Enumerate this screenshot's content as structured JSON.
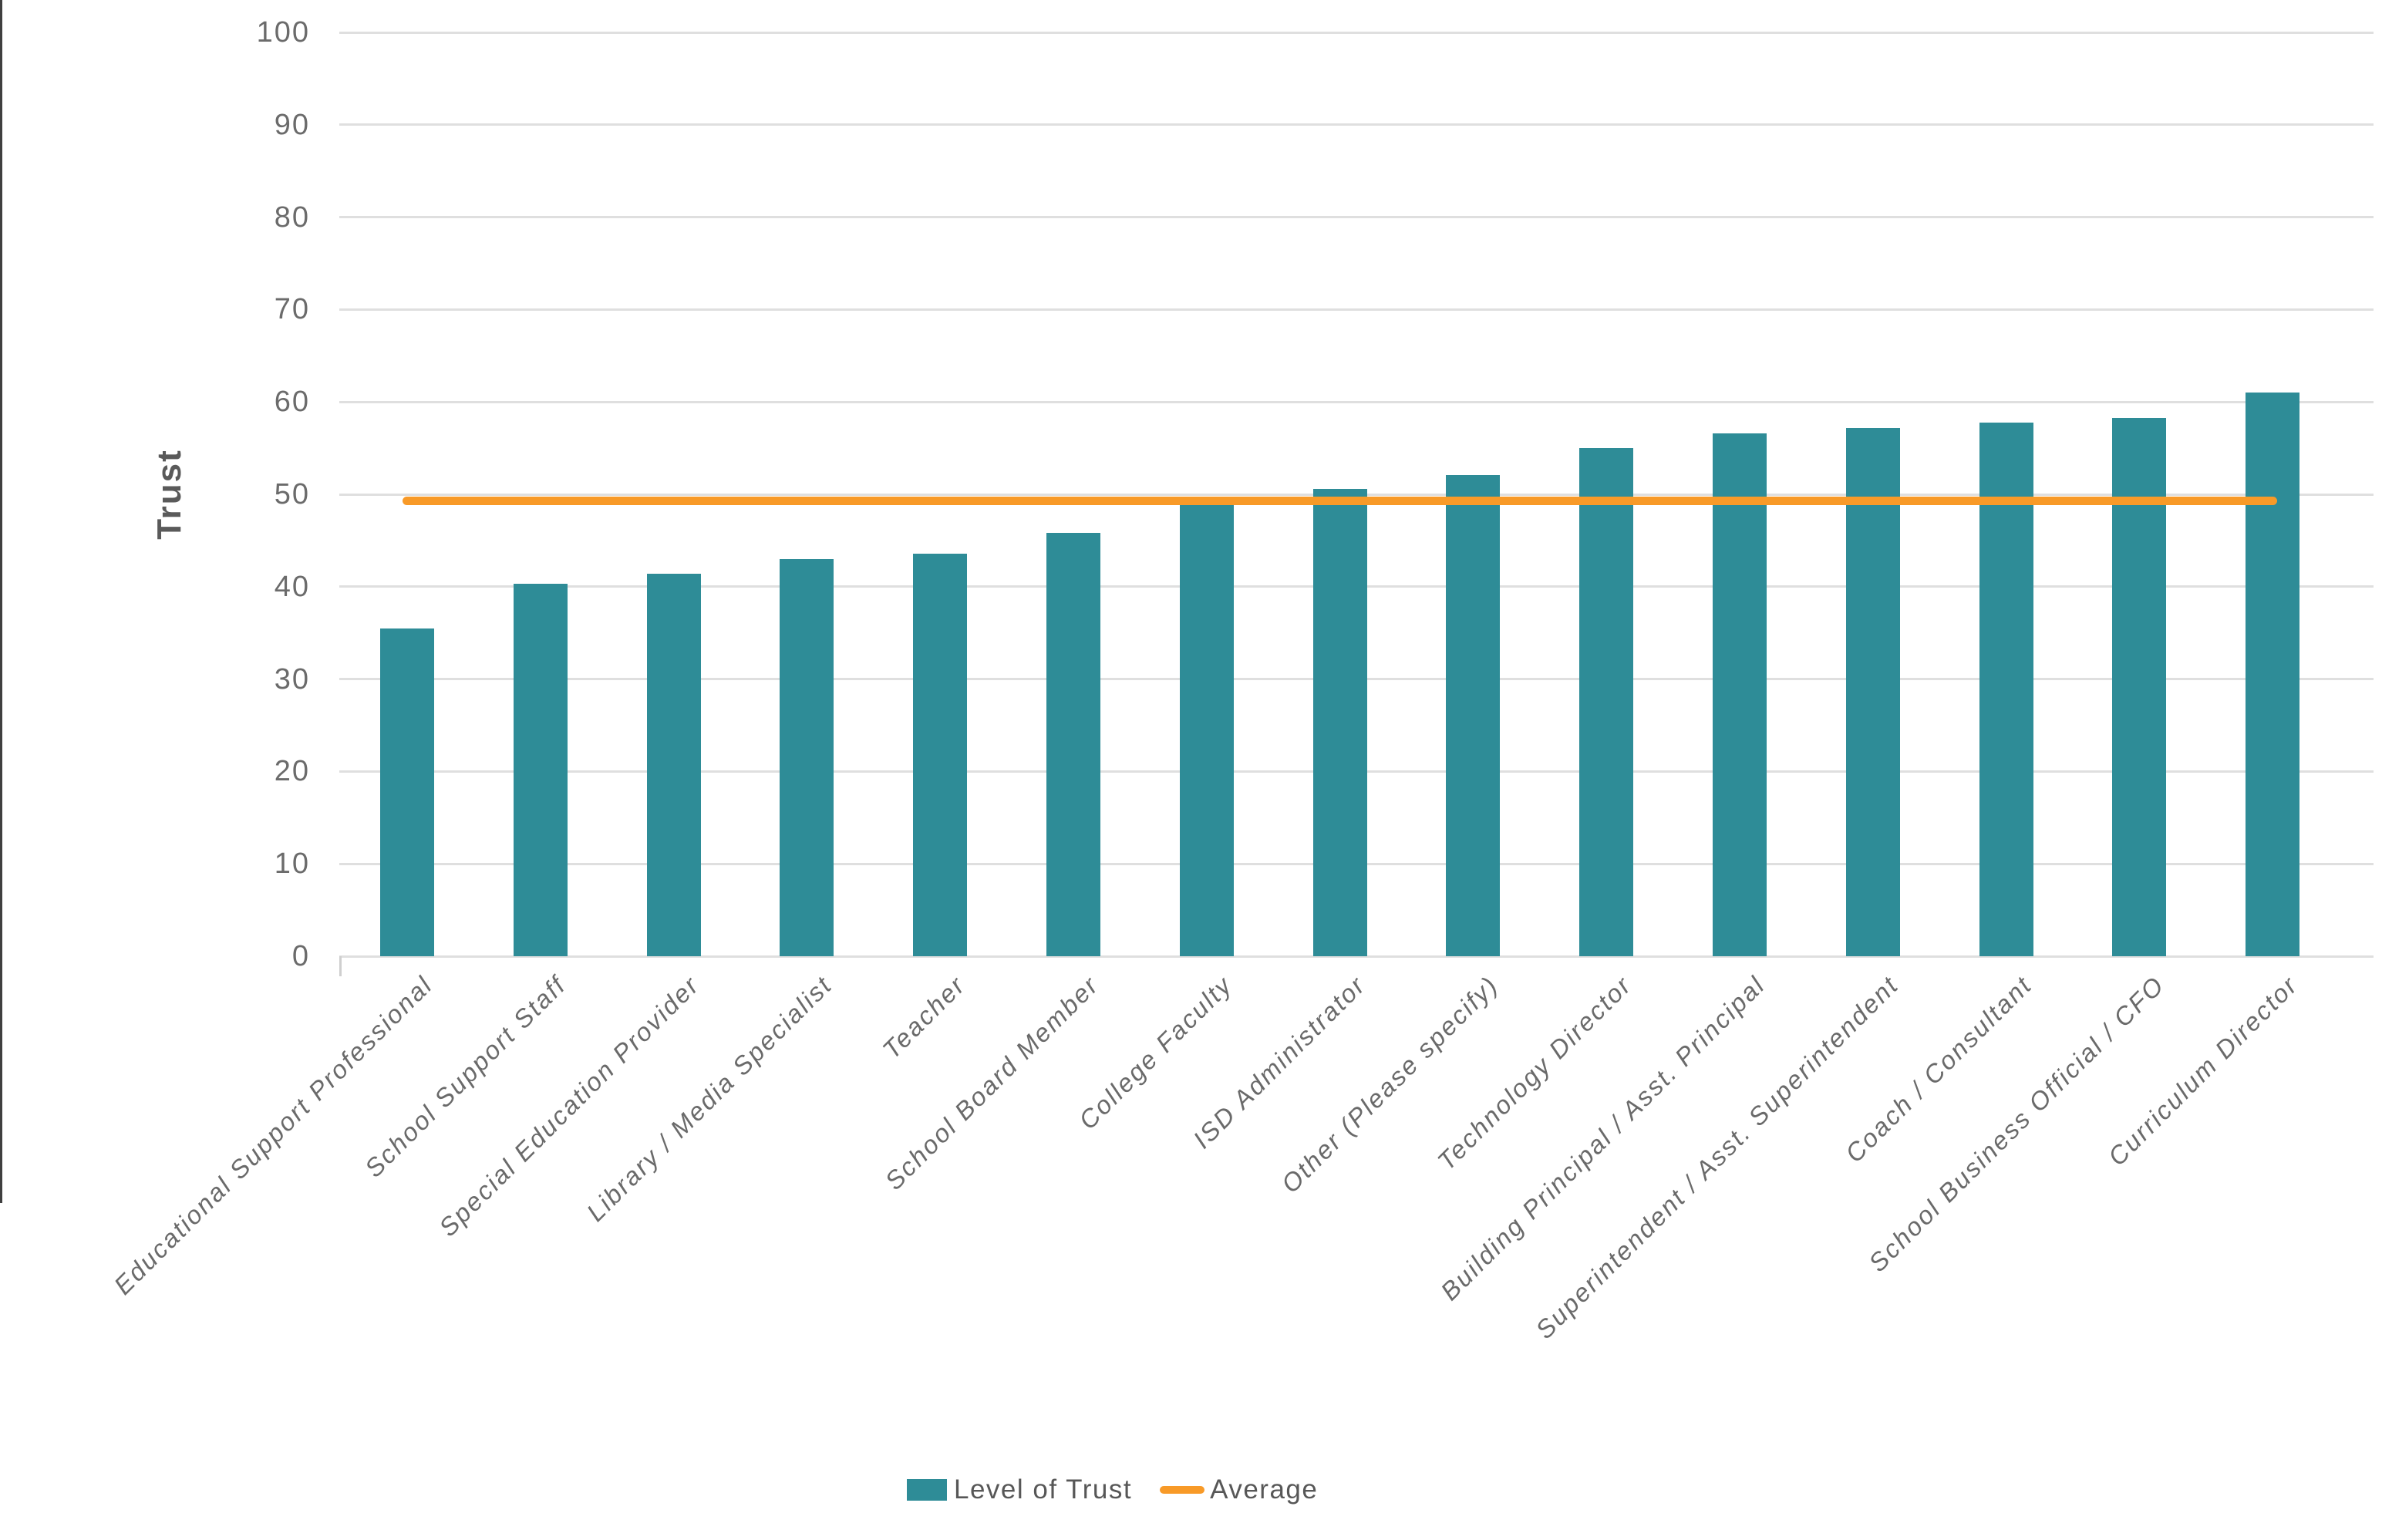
{
  "chart_data": {
    "type": "bar",
    "title": "",
    "xlabel": "",
    "ylabel": "Trust",
    "ylim": [
      0,
      100
    ],
    "ytick_step": 10,
    "grid": true,
    "legend_position": "bottom",
    "categories": [
      "Educational Support Professional",
      "School Support Staff",
      "Special Education Provider",
      "Library / Media Specialist",
      "Teacher",
      "School Board Member",
      "College Faculty",
      "ISD Administrator",
      "Other (Please specify)",
      "Technology Director",
      "Building Principal / Asst. Principal",
      "Superintendent / Asst. Superintendent",
      "Coach / Consultant",
      "School Business Official / CFO",
      "Curriculum Director"
    ],
    "series": [
      {
        "name": "Level of Trust",
        "type": "bar",
        "color": "#2E8C97",
        "values": [
          35.5,
          40.3,
          41.4,
          43.0,
          43.6,
          45.8,
          49.0,
          50.6,
          52.1,
          55.0,
          56.6,
          57.2,
          57.8,
          58.3,
          61.0
        ]
      },
      {
        "name": "Average",
        "type": "line",
        "color": "#F89A28",
        "value": 49.3
      }
    ],
    "style": {
      "grid_color": "#dfdfdf",
      "tick_text_color": "#6b6b6b",
      "label_text_color": "#6a6a6a",
      "bar_color": "#2E8C97",
      "average_line_color": "#F89A28"
    },
    "y_tick_labels": [
      "0",
      "10",
      "20",
      "30",
      "40",
      "50",
      "60",
      "70",
      "80",
      "90",
      "100"
    ]
  },
  "legend": {
    "bar_label": "Level of Trust",
    "line_label": "Average"
  }
}
